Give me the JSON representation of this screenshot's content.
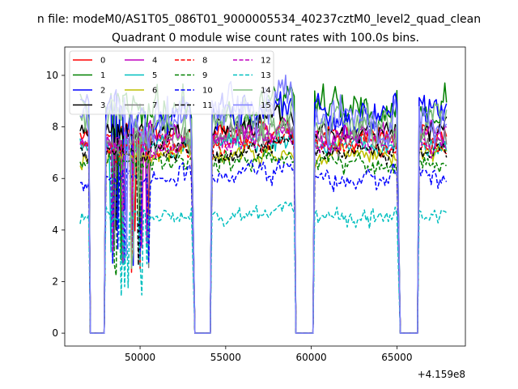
{
  "chart_data": {
    "type": "line",
    "suptitle": "n file: modeM0/AS1T05_086T01_9000005534_40237cztM0_level2_quad_clean",
    "title": "Quadrant 0 module wise count rates with 100.0s bins.",
    "xlabel": "",
    "ylabel": "",
    "x_offset_label": "+4.159e8",
    "xlim": [
      45600,
      69000
    ],
    "ylim": [
      -0.5,
      11.1
    ],
    "xticks": [
      50000,
      55000,
      60000,
      65000
    ],
    "xtick_labels": [
      "50000",
      "55000",
      "60000",
      "65000"
    ],
    "yticks": [
      0,
      2,
      4,
      6,
      8,
      10
    ],
    "ytick_labels": [
      "0",
      "2",
      "4",
      "6",
      "8",
      "10"
    ],
    "segments": [
      [
        46500,
        47000
      ],
      [
        48000,
        53000
      ],
      [
        54200,
        59000
      ],
      [
        60200,
        65000
      ],
      [
        66300,
        67900
      ]
    ],
    "zero_intervals": [
      [
        47100,
        47900
      ],
      [
        53200,
        54100
      ],
      [
        59100,
        60100
      ],
      [
        65200,
        66200
      ]
    ],
    "legend_position": "top-left",
    "series": [
      {
        "name": "0",
        "color": "#ff0000",
        "dash": "solid",
        "mean": 7.7,
        "amp": 0.45,
        "seed": 11
      },
      {
        "name": "1",
        "color": "#008000",
        "dash": "solid",
        "mean": 8.6,
        "amp": 0.8,
        "seed": 23
      },
      {
        "name": "2",
        "color": "#0000ff",
        "dash": "solid",
        "mean": 8.5,
        "amp": 0.8,
        "seed": 37
      },
      {
        "name": "3",
        "color": "#000000",
        "dash": "solid",
        "mean": 7.8,
        "amp": 0.5,
        "seed": 41
      },
      {
        "name": "4",
        "color": "#bf00bf",
        "dash": "solid",
        "mean": 7.6,
        "amp": 0.5,
        "seed": 53
      },
      {
        "name": "5",
        "color": "#00bfbf",
        "dash": "solid",
        "mean": 7.3,
        "amp": 0.4,
        "seed": 67
      },
      {
        "name": "6",
        "color": "#bfbf00",
        "dash": "solid",
        "mean": 6.9,
        "amp": 0.4,
        "seed": 71
      },
      {
        "name": "7",
        "color": "#808080",
        "dash": "solid",
        "mean": 7.5,
        "amp": 0.5,
        "seed": 83
      },
      {
        "name": "8",
        "color": "#ff0000",
        "dash": "dashed",
        "mean": 7.2,
        "amp": 0.4,
        "seed": 97
      },
      {
        "name": "9",
        "color": "#008000",
        "dash": "dashed",
        "mean": 6.6,
        "amp": 0.4,
        "seed": 101
      },
      {
        "name": "10",
        "color": "#0000ff",
        "dash": "dashed",
        "mean": 6.0,
        "amp": 0.4,
        "seed": 113
      },
      {
        "name": "11",
        "color": "#000000",
        "dash": "dashed",
        "mean": 7.0,
        "amp": 0.4,
        "seed": 127
      },
      {
        "name": "12",
        "color": "#bf00bf",
        "dash": "dashed",
        "mean": 7.3,
        "amp": 0.4,
        "seed": 131
      },
      {
        "name": "13",
        "color": "#00bfbf",
        "dash": "dashed",
        "mean": 4.5,
        "amp": 0.35,
        "seed": 149
      },
      {
        "name": "14",
        "color": "#7fbf7f",
        "dash": "solid",
        "mean": 8.1,
        "amp": 0.9,
        "seed": 157
      },
      {
        "name": "15",
        "color": "#7f7fff",
        "dash": "solid",
        "mean": 8.3,
        "amp": 0.9,
        "seed": 163
      }
    ]
  }
}
